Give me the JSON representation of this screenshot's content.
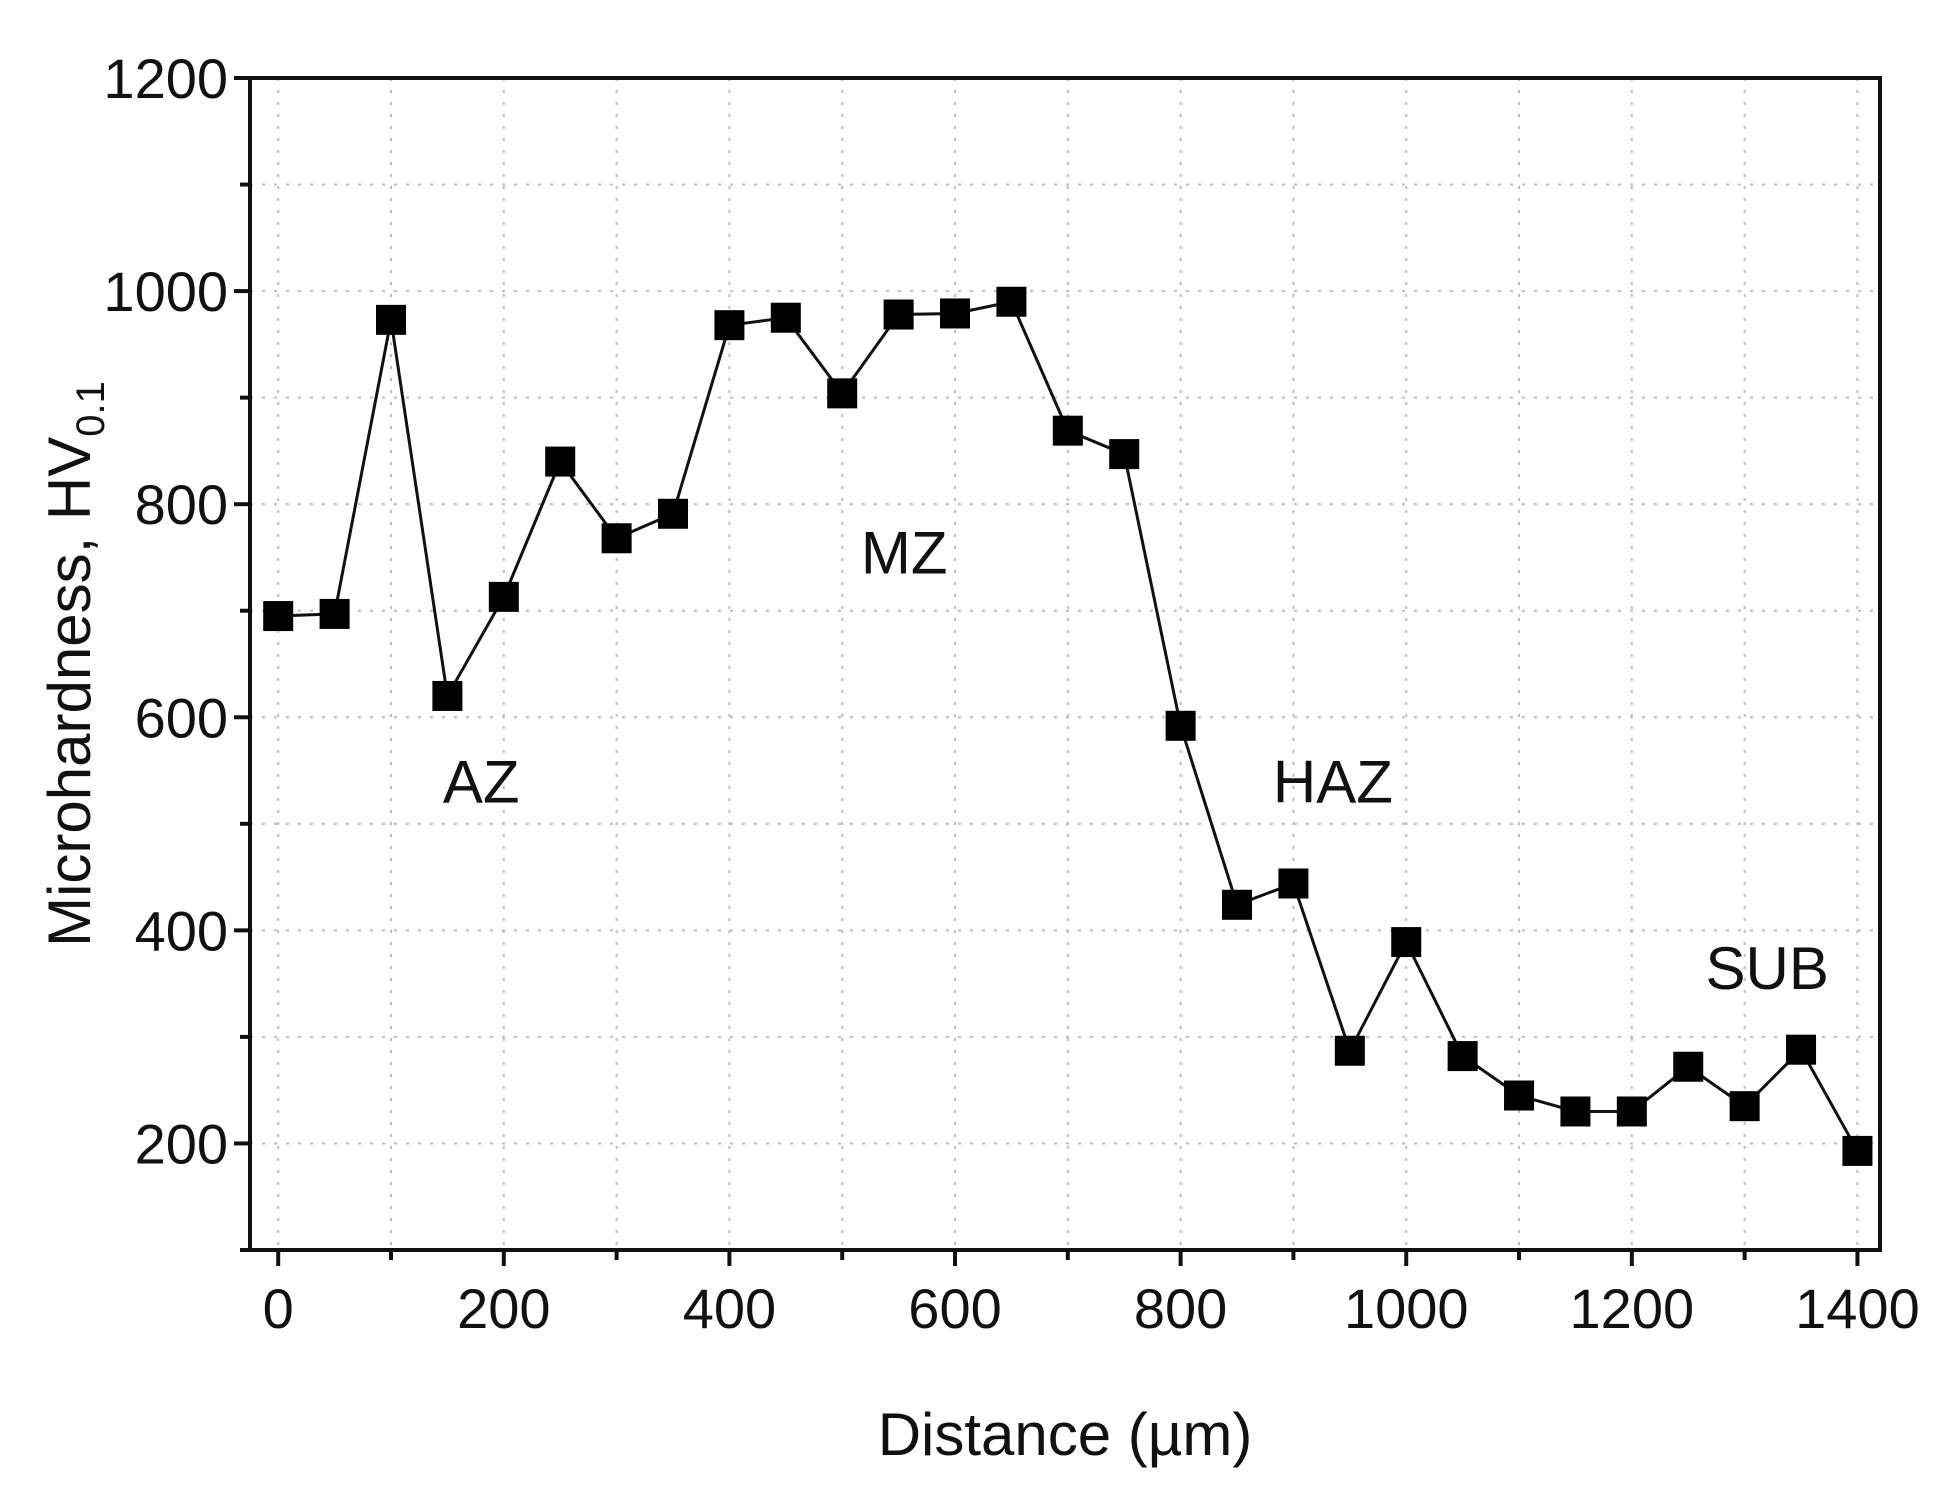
{
  "chart_data": {
    "type": "line",
    "title": "",
    "xlabel": "Distance (µm)",
    "ylabel_main": "Microhardness, HV",
    "ylabel_subscript": "0.1",
    "xlim": [
      -25,
      1420
    ],
    "ylim": [
      100,
      1200
    ],
    "xticks": [
      0,
      200,
      400,
      600,
      800,
      1000,
      1200,
      1400
    ],
    "yticks": [
      200,
      400,
      600,
      800,
      1000,
      1200
    ],
    "x_minor_step": 100,
    "y_minor_step": 100,
    "grid": true,
    "marker": "square",
    "color": "#000000",
    "series": [
      {
        "name": "Microhardness",
        "x": [
          0,
          50,
          100,
          150,
          200,
          250,
          300,
          350,
          400,
          450,
          500,
          550,
          600,
          650,
          700,
          750,
          800,
          850,
          900,
          950,
          1000,
          1050,
          1100,
          1150,
          1200,
          1250,
          1300,
          1350,
          1400
        ],
        "y": [
          695,
          697,
          973,
          620,
          713,
          840,
          768,
          791,
          968,
          975,
          904,
          978,
          979,
          990,
          869,
          847,
          592,
          424,
          444,
          287,
          389,
          282,
          245,
          230,
          230,
          272,
          235,
          288,
          193
        ]
      }
    ],
    "annotations": [
      {
        "text": "AZ",
        "x": 180,
        "y": 520
      },
      {
        "text": "MZ",
        "x": 555,
        "y": 735
      },
      {
        "text": "HAZ",
        "x": 935,
        "y": 520
      },
      {
        "text": "SUB",
        "x": 1320,
        "y": 345
      }
    ]
  }
}
